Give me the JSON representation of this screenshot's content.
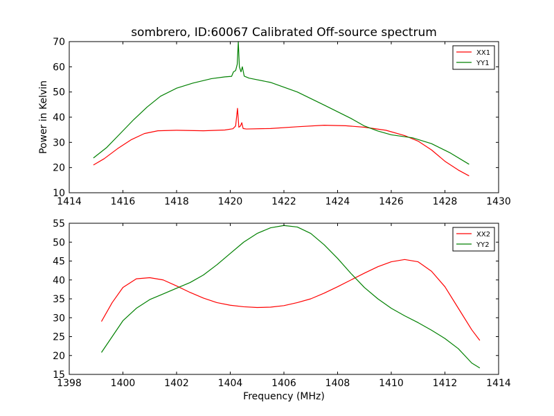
{
  "chart_data": [
    {
      "type": "line",
      "title": "sombrero, ID:60067 Calibrated Off-source spectrum",
      "xlabel": "",
      "ylabel": "Power in Kelvin",
      "xlim": [
        1414,
        1430
      ],
      "ylim": [
        10,
        70
      ],
      "xticks": [
        "1414",
        "1416",
        "1418",
        "1420",
        "1422",
        "1424",
        "1426",
        "1428",
        "1430"
      ],
      "yticks": [
        "10",
        "20",
        "30",
        "40",
        "50",
        "60",
        "70"
      ],
      "legend": "top-right",
      "series": [
        {
          "name": "XX1",
          "color": "#ff0000",
          "points": [
            [
              1414.9,
              21.0
            ],
            [
              1415.3,
              23.5
            ],
            [
              1415.8,
              27.5
            ],
            [
              1416.3,
              31.0
            ],
            [
              1416.8,
              33.5
            ],
            [
              1417.3,
              34.6
            ],
            [
              1418.0,
              34.8
            ],
            [
              1419.0,
              34.6
            ],
            [
              1419.8,
              34.9
            ],
            [
              1420.1,
              35.4
            ],
            [
              1420.2,
              36.5
            ],
            [
              1420.27,
              43.5
            ],
            [
              1420.32,
              36.0
            ],
            [
              1420.38,
              36.5
            ],
            [
              1420.43,
              37.8
            ],
            [
              1420.48,
              35.5
            ],
            [
              1420.6,
              35.3
            ],
            [
              1421.5,
              35.5
            ],
            [
              1422.5,
              36.2
            ],
            [
              1423.5,
              36.8
            ],
            [
              1424.3,
              36.6
            ],
            [
              1425.0,
              36.0
            ],
            [
              1425.8,
              34.8
            ],
            [
              1426.5,
              32.7
            ],
            [
              1427.0,
              30.5
            ],
            [
              1427.5,
              27.0
            ],
            [
              1428.0,
              22.5
            ],
            [
              1428.5,
              19.0
            ],
            [
              1428.9,
              16.7
            ]
          ]
        },
        {
          "name": "YY1",
          "color": "#008000",
          "points": [
            [
              1414.9,
              23.8
            ],
            [
              1415.4,
              28.0
            ],
            [
              1415.9,
              33.5
            ],
            [
              1416.4,
              39.0
            ],
            [
              1416.9,
              44.0
            ],
            [
              1417.4,
              48.3
            ],
            [
              1418.0,
              51.5
            ],
            [
              1418.6,
              53.5
            ],
            [
              1419.3,
              55.3
            ],
            [
              1419.8,
              56.0
            ],
            [
              1420.05,
              56.2
            ],
            [
              1420.12,
              58.0
            ],
            [
              1420.2,
              58.5
            ],
            [
              1420.26,
              61.0
            ],
            [
              1420.3,
              70.0
            ],
            [
              1420.34,
              60.0
            ],
            [
              1420.4,
              58.0
            ],
            [
              1420.45,
              60.0
            ],
            [
              1420.52,
              56.3
            ],
            [
              1420.7,
              55.5
            ],
            [
              1421.5,
              53.8
            ],
            [
              1422.5,
              50.0
            ],
            [
              1423.5,
              44.8
            ],
            [
              1424.5,
              39.5
            ],
            [
              1425.0,
              36.5
            ],
            [
              1425.5,
              34.5
            ],
            [
              1426.0,
              33.0
            ],
            [
              1426.8,
              31.8
            ],
            [
              1427.5,
              29.5
            ],
            [
              1428.2,
              25.8
            ],
            [
              1428.9,
              21.3
            ]
          ]
        }
      ]
    },
    {
      "type": "line",
      "title": "",
      "xlabel": "Frequency (MHz)",
      "ylabel": "",
      "xlim": [
        1398,
        1414
      ],
      "ylim": [
        15,
        55
      ],
      "xticks": [
        "1398",
        "1400",
        "1402",
        "1404",
        "1406",
        "1408",
        "1410",
        "1412",
        "1414"
      ],
      "yticks": [
        "15",
        "20",
        "25",
        "30",
        "35",
        "40",
        "45",
        "50",
        "55"
      ],
      "legend": "top-right",
      "series": [
        {
          "name": "XX2",
          "color": "#ff0000",
          "points": [
            [
              1399.2,
              29.0
            ],
            [
              1399.6,
              34.0
            ],
            [
              1400.0,
              38.0
            ],
            [
              1400.5,
              40.3
            ],
            [
              1401.0,
              40.6
            ],
            [
              1401.5,
              40.0
            ],
            [
              1402.0,
              38.4
            ],
            [
              1402.5,
              36.7
            ],
            [
              1403.0,
              35.2
            ],
            [
              1403.5,
              34.0
            ],
            [
              1404.0,
              33.3
            ],
            [
              1404.5,
              32.9
            ],
            [
              1405.0,
              32.7
            ],
            [
              1405.5,
              32.8
            ],
            [
              1406.0,
              33.2
            ],
            [
              1406.5,
              34.0
            ],
            [
              1407.0,
              35.0
            ],
            [
              1407.5,
              36.5
            ],
            [
              1408.0,
              38.2
            ],
            [
              1408.5,
              40.0
            ],
            [
              1409.0,
              41.8
            ],
            [
              1409.5,
              43.5
            ],
            [
              1410.0,
              44.8
            ],
            [
              1410.5,
              45.4
            ],
            [
              1411.0,
              44.8
            ],
            [
              1411.5,
              42.3
            ],
            [
              1412.0,
              38.2
            ],
            [
              1412.5,
              32.5
            ],
            [
              1413.0,
              26.8
            ],
            [
              1413.3,
              24.0
            ]
          ]
        },
        {
          "name": "YY2",
          "color": "#008000",
          "points": [
            [
              1399.2,
              20.8
            ],
            [
              1399.6,
              25.0
            ],
            [
              1400.0,
              29.2
            ],
            [
              1400.5,
              32.5
            ],
            [
              1401.0,
              34.8
            ],
            [
              1401.5,
              36.3
            ],
            [
              1402.0,
              37.8
            ],
            [
              1402.5,
              39.3
            ],
            [
              1403.0,
              41.3
            ],
            [
              1403.5,
              44.0
            ],
            [
              1404.0,
              47.0
            ],
            [
              1404.5,
              50.0
            ],
            [
              1405.0,
              52.3
            ],
            [
              1405.5,
              53.8
            ],
            [
              1406.0,
              54.4
            ],
            [
              1406.5,
              54.0
            ],
            [
              1407.0,
              52.3
            ],
            [
              1407.5,
              49.3
            ],
            [
              1408.0,
              45.7
            ],
            [
              1408.5,
              41.7
            ],
            [
              1409.0,
              38.0
            ],
            [
              1409.5,
              35.0
            ],
            [
              1410.0,
              32.5
            ],
            [
              1410.5,
              30.5
            ],
            [
              1411.0,
              28.7
            ],
            [
              1411.5,
              26.7
            ],
            [
              1412.0,
              24.5
            ],
            [
              1412.5,
              21.8
            ],
            [
              1413.0,
              18.0
            ],
            [
              1413.3,
              16.7
            ]
          ]
        }
      ]
    }
  ]
}
